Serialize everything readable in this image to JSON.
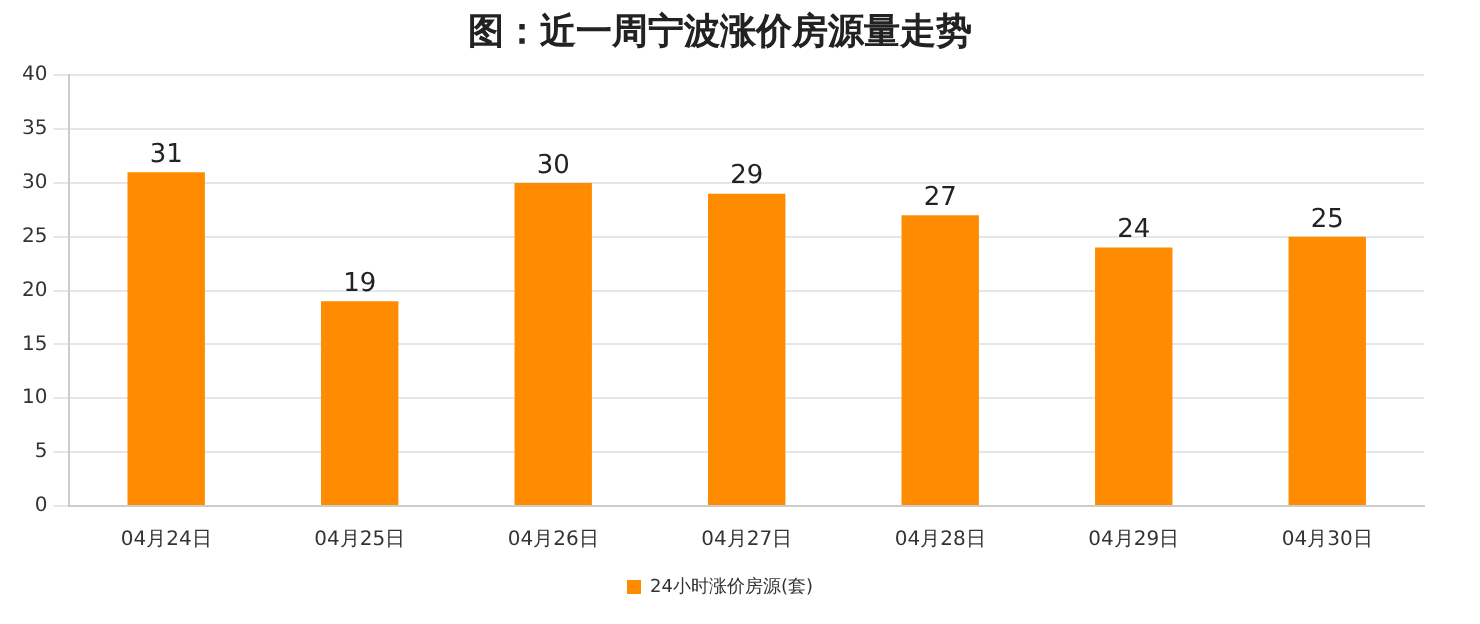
{
  "chart_data": {
    "type": "bar",
    "title": "图：近一周宁波涨价房源量走势",
    "categories": [
      "04月24日",
      "04月25日",
      "04月26日",
      "04月27日",
      "04月28日",
      "04月29日",
      "04月30日"
    ],
    "series": [
      {
        "name": "24小时涨价房源(套)",
        "color": "#ff8c00",
        "values": [
          31,
          19,
          30,
          29,
          27,
          24,
          25
        ]
      }
    ],
    "ylim": [
      0,
      40
    ],
    "yticks": [
      0,
      5,
      10,
      15,
      20,
      25,
      30,
      35,
      40
    ],
    "grid": "y",
    "legend": "bottom",
    "data_labels": true
  }
}
